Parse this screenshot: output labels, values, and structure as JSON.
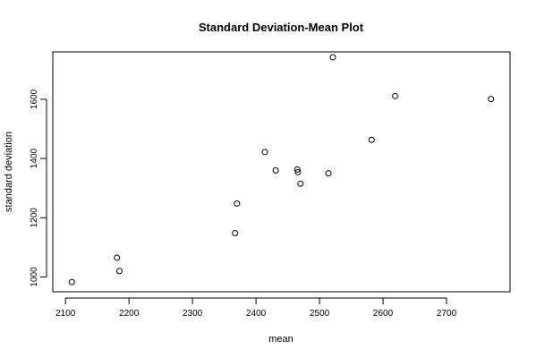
{
  "chart_data": {
    "type": "scatter",
    "title": "Standard Deviation-Mean Plot",
    "xlabel": "mean",
    "ylabel": "standard deviation",
    "xlim": [
      2080,
      2800
    ],
    "ylim": [
      950,
      1760
    ],
    "xticks": [
      2100,
      2200,
      2300,
      2400,
      2500,
      2600,
      2700
    ],
    "yticks": [
      1000,
      1200,
      1400,
      1600
    ],
    "grid": false,
    "legend": "none",
    "x": [
      2110,
      2181,
      2185,
      2367,
      2370,
      2414,
      2431,
      2465,
      2466,
      2470,
      2514,
      2521,
      2582,
      2619,
      2770
    ],
    "y": [
      983,
      1065,
      1020,
      1148,
      1248,
      1422,
      1360,
      1363,
      1354,
      1315,
      1350,
      1742,
      1463,
      1611,
      1601
    ]
  }
}
